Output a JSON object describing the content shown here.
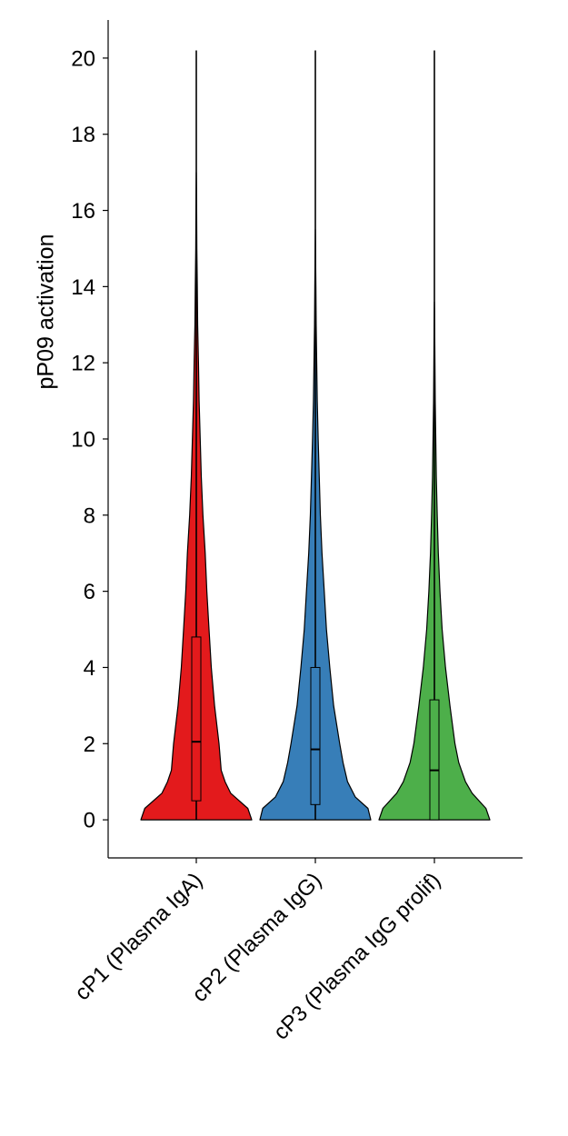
{
  "chart_data": {
    "type": "violin",
    "ylabel": "pP09 activation",
    "ylim": [
      -1,
      21
    ],
    "yticks": [
      0,
      2,
      4,
      6,
      8,
      10,
      12,
      14,
      16,
      18,
      20
    ],
    "categories": [
      "cP1 (Plasma IgA)",
      "cP2 (Plasma IgG)",
      "cP3 (Plasma IgG prolif)"
    ],
    "series": [
      {
        "color": "#e31a1c",
        "whisker": [
          0,
          20.2
        ],
        "box": {
          "q1": 0.5,
          "median": 2.05,
          "q3": 4.8
        },
        "density": [
          [
            0,
            1.0
          ],
          [
            0.3,
            0.93
          ],
          [
            0.7,
            0.62
          ],
          [
            1.0,
            0.52
          ],
          [
            1.3,
            0.45
          ],
          [
            2.0,
            0.41
          ],
          [
            3.0,
            0.33
          ],
          [
            4.0,
            0.27
          ],
          [
            5.0,
            0.23
          ],
          [
            6.0,
            0.19
          ],
          [
            7.0,
            0.16
          ],
          [
            8.0,
            0.12
          ],
          [
            9.0,
            0.09
          ],
          [
            10.0,
            0.07
          ],
          [
            11.0,
            0.05
          ],
          [
            12.0,
            0.04
          ],
          [
            13.0,
            0.025
          ],
          [
            14.0,
            0.018
          ],
          [
            15.0,
            0.01
          ],
          [
            16.0,
            0.006
          ],
          [
            17.0,
            0.0
          ]
        ]
      },
      {
        "color": "#377eb8",
        "whisker": [
          0,
          20.2
        ],
        "box": {
          "q1": 0.4,
          "median": 1.85,
          "q3": 4.0
        },
        "density": [
          [
            0,
            1.0
          ],
          [
            0.3,
            0.95
          ],
          [
            0.6,
            0.72
          ],
          [
            1.0,
            0.58
          ],
          [
            1.5,
            0.5
          ],
          [
            2.0,
            0.44
          ],
          [
            3.0,
            0.33
          ],
          [
            4.0,
            0.26
          ],
          [
            5.0,
            0.2
          ],
          [
            6.0,
            0.16
          ],
          [
            7.0,
            0.12
          ],
          [
            8.0,
            0.09
          ],
          [
            9.0,
            0.07
          ],
          [
            10.0,
            0.05
          ],
          [
            11.0,
            0.035
          ],
          [
            12.0,
            0.025
          ],
          [
            13.0,
            0.015
          ],
          [
            14.0,
            0.01
          ],
          [
            15.0,
            0.004
          ],
          [
            15.5,
            0.0
          ]
        ]
      },
      {
        "color": "#4daf4a",
        "whisker": [
          0,
          20.2
        ],
        "box": {
          "q1": 0.0,
          "median": 1.3,
          "q3": 3.15
        },
        "density": [
          [
            0,
            1.0
          ],
          [
            0.3,
            0.93
          ],
          [
            0.7,
            0.68
          ],
          [
            1.0,
            0.56
          ],
          [
            1.5,
            0.44
          ],
          [
            2.0,
            0.37
          ],
          [
            3.0,
            0.28
          ],
          [
            4.0,
            0.2
          ],
          [
            5.0,
            0.14
          ],
          [
            6.0,
            0.1
          ],
          [
            7.0,
            0.07
          ],
          [
            8.0,
            0.05
          ],
          [
            9.0,
            0.035
          ],
          [
            10.0,
            0.025
          ],
          [
            11.0,
            0.015
          ],
          [
            12.0,
            0.01
          ],
          [
            13.0,
            0.005
          ],
          [
            13.6,
            0.0
          ]
        ]
      }
    ]
  }
}
